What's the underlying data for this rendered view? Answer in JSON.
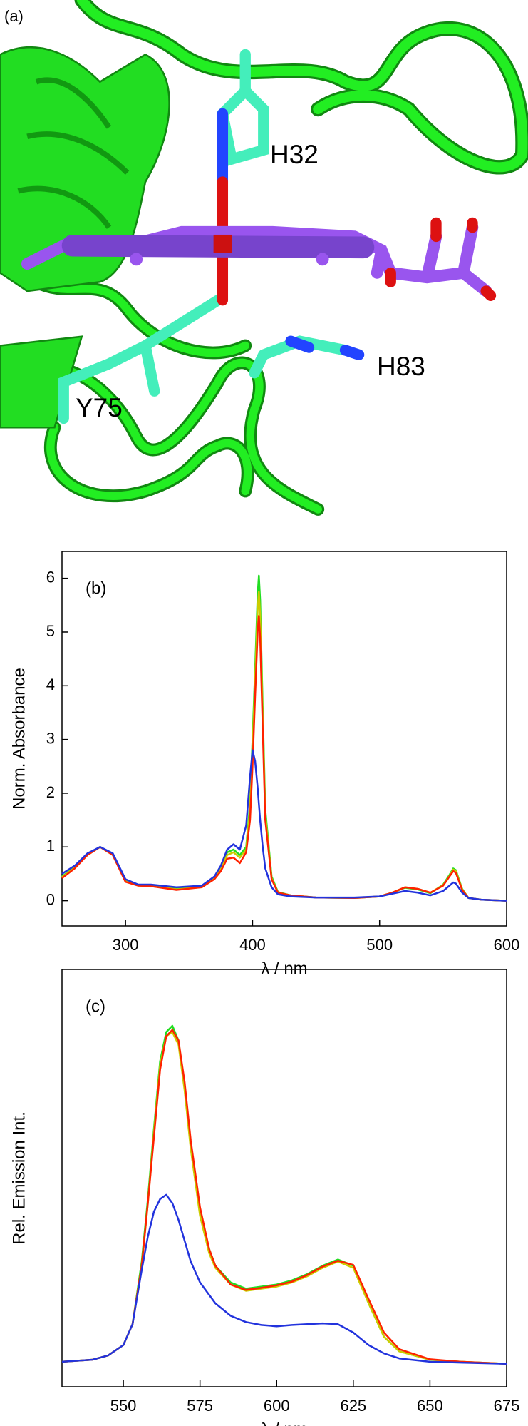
{
  "figure_a": {
    "label": "(a)",
    "residues": [
      "H32",
      "Y75",
      "H83"
    ]
  },
  "chart_data": [
    {
      "type": "line",
      "label": "(b)",
      "xlabel": "λ / nm",
      "ylabel": "Norm. Absorbance",
      "xlim": [
        250,
        600
      ],
      "xticks": [
        300,
        400,
        500,
        600
      ],
      "ylim": [
        -0.47,
        6.5
      ],
      "yticks": [
        0,
        1,
        2,
        3,
        4,
        5,
        6
      ],
      "x": [
        250,
        260,
        270,
        280,
        290,
        300,
        310,
        320,
        340,
        360,
        370,
        375,
        380,
        385,
        390,
        395,
        398,
        400,
        402,
        404,
        405,
        406,
        408,
        410,
        415,
        420,
        430,
        450,
        480,
        500,
        510,
        520,
        530,
        540,
        550,
        555,
        558,
        560,
        565,
        570,
        580,
        600
      ],
      "series": [
        {
          "color": "#22dd22",
          "values": [
            0.45,
            0.62,
            0.86,
            1.0,
            0.86,
            0.37,
            0.29,
            0.28,
            0.22,
            0.26,
            0.42,
            0.6,
            0.9,
            0.95,
            0.85,
            1.0,
            1.8,
            3.0,
            4.3,
            5.7,
            6.05,
            5.6,
            3.6,
            1.7,
            0.45,
            0.16,
            0.1,
            0.06,
            0.05,
            0.08,
            0.15,
            0.24,
            0.21,
            0.14,
            0.3,
            0.48,
            0.6,
            0.57,
            0.22,
            0.05,
            0.02,
            0
          ]
        },
        {
          "color": "#cccc00",
          "values": [
            0.44,
            0.61,
            0.85,
            1.0,
            0.85,
            0.36,
            0.28,
            0.27,
            0.21,
            0.25,
            0.41,
            0.58,
            0.85,
            0.9,
            0.8,
            0.95,
            1.7,
            2.8,
            4.1,
            5.4,
            5.75,
            5.3,
            3.4,
            1.6,
            0.42,
            0.15,
            0.1,
            0.06,
            0.05,
            0.08,
            0.15,
            0.25,
            0.22,
            0.15,
            0.29,
            0.46,
            0.58,
            0.55,
            0.21,
            0.05,
            0.02,
            0
          ]
        },
        {
          "color": "#ff2200",
          "values": [
            0.42,
            0.6,
            0.85,
            1.0,
            0.85,
            0.35,
            0.28,
            0.27,
            0.2,
            0.25,
            0.4,
            0.55,
            0.78,
            0.8,
            0.7,
            0.9,
            1.5,
            2.5,
            3.8,
            5.0,
            5.3,
            4.9,
            3.2,
            1.5,
            0.4,
            0.15,
            0.1,
            0.06,
            0.05,
            0.08,
            0.15,
            0.25,
            0.22,
            0.15,
            0.28,
            0.45,
            0.55,
            0.52,
            0.2,
            0.05,
            0.02,
            0
          ]
        },
        {
          "color": "#2233dd",
          "values": [
            0.5,
            0.65,
            0.88,
            1.0,
            0.88,
            0.4,
            0.3,
            0.3,
            0.25,
            0.28,
            0.45,
            0.65,
            0.95,
            1.05,
            0.95,
            1.4,
            2.3,
            2.8,
            2.6,
            2.1,
            1.8,
            1.5,
            1.0,
            0.6,
            0.25,
            0.12,
            0.08,
            0.06,
            0.06,
            0.08,
            0.13,
            0.18,
            0.15,
            0.1,
            0.18,
            0.28,
            0.34,
            0.32,
            0.15,
            0.05,
            0.02,
            0
          ]
        }
      ]
    },
    {
      "type": "line",
      "label": "(c)",
      "xlabel": "λ / nm",
      "ylabel": "Rel. Emission Int.",
      "xlim": [
        530,
        675
      ],
      "xticks": [
        550,
        575,
        600,
        625,
        650,
        675
      ],
      "ylim": [
        0,
        1
      ],
      "x": [
        530,
        540,
        545,
        550,
        553,
        556,
        558,
        560,
        562,
        564,
        566,
        568,
        570,
        572,
        575,
        578,
        580,
        585,
        590,
        595,
        600,
        605,
        610,
        615,
        620,
        625,
        630,
        635,
        640,
        650,
        660,
        675
      ],
      "series": [
        {
          "color": "#22dd22",
          "values": [
            0.06,
            0.065,
            0.075,
            0.1,
            0.15,
            0.3,
            0.45,
            0.62,
            0.78,
            0.85,
            0.865,
            0.83,
            0.72,
            0.58,
            0.42,
            0.33,
            0.29,
            0.25,
            0.235,
            0.24,
            0.245,
            0.255,
            0.27,
            0.29,
            0.305,
            0.29,
            0.2,
            0.12,
            0.085,
            0.065,
            0.06,
            0.055
          ]
        },
        {
          "color": "#cccc00",
          "values": [
            0.06,
            0.065,
            0.075,
            0.1,
            0.15,
            0.29,
            0.44,
            0.61,
            0.77,
            0.84,
            0.85,
            0.82,
            0.71,
            0.57,
            0.41,
            0.32,
            0.285,
            0.245,
            0.23,
            0.235,
            0.24,
            0.25,
            0.265,
            0.285,
            0.3,
            0.285,
            0.2,
            0.12,
            0.085,
            0.065,
            0.06,
            0.055
          ]
        },
        {
          "color": "#ff2200",
          "values": [
            0.06,
            0.065,
            0.075,
            0.1,
            0.15,
            0.29,
            0.44,
            0.6,
            0.76,
            0.84,
            0.855,
            0.83,
            0.73,
            0.59,
            0.43,
            0.33,
            0.29,
            0.245,
            0.232,
            0.237,
            0.243,
            0.252,
            0.268,
            0.288,
            0.302,
            0.292,
            0.21,
            0.13,
            0.09,
            0.066,
            0.06,
            0.055
          ]
        },
        {
          "color": "#2233dd",
          "values": [
            0.06,
            0.065,
            0.075,
            0.1,
            0.15,
            0.28,
            0.36,
            0.42,
            0.45,
            0.46,
            0.44,
            0.4,
            0.35,
            0.3,
            0.25,
            0.22,
            0.2,
            0.17,
            0.155,
            0.148,
            0.145,
            0.148,
            0.15,
            0.152,
            0.15,
            0.13,
            0.1,
            0.08,
            0.068,
            0.06,
            0.058,
            0.055
          ]
        }
      ]
    }
  ]
}
